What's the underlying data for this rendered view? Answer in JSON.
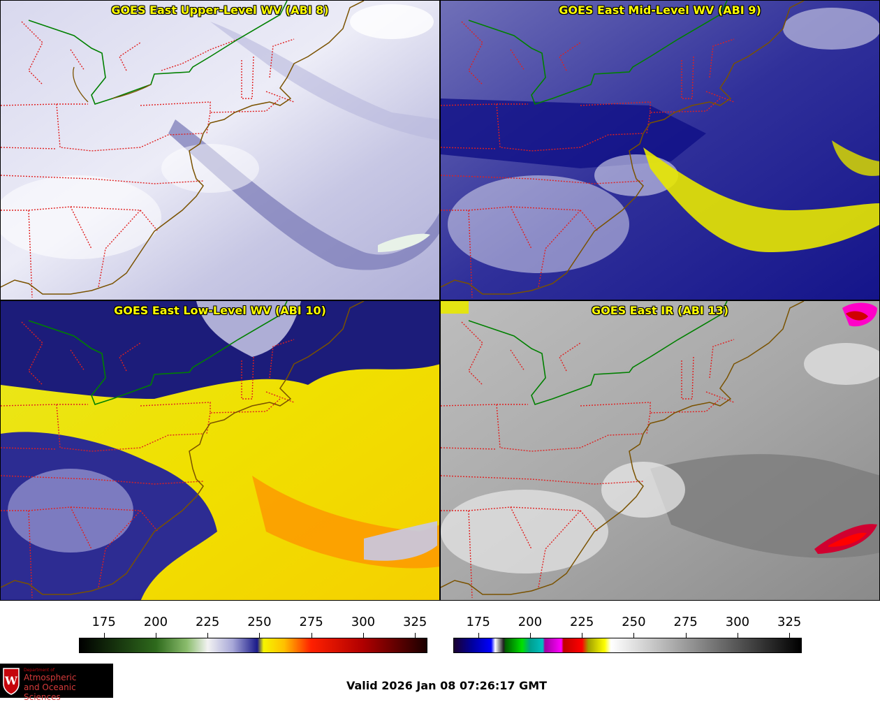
{
  "panels": [
    {
      "title": "GOES East Upper-Level WV (ABI 8)"
    },
    {
      "title": "GOES East Mid-Level WV (ABI 9)"
    },
    {
      "title": "GOES East Low-Level WV (ABI 10)"
    },
    {
      "title": "GOES East IR (ABI 13)"
    }
  ],
  "colorbars": {
    "wv": {
      "ticks": [
        "175",
        "200",
        "225",
        "250",
        "275",
        "300",
        "325"
      ],
      "tick_values": [
        175,
        200,
        225,
        250,
        275,
        300,
        325
      ],
      "range": [
        163,
        331
      ],
      "gradient": [
        {
          "v": 163,
          "c": "#000000"
        },
        {
          "v": 200,
          "c": "#2e6a1c"
        },
        {
          "v": 215,
          "c": "#8bbd6d"
        },
        {
          "v": 225,
          "c": "#f2f2f2"
        },
        {
          "v": 237,
          "c": "#a8a8d8"
        },
        {
          "v": 249,
          "c": "#1a1a8a"
        },
        {
          "v": 252,
          "c": "#f5f500"
        },
        {
          "v": 262,
          "c": "#ffc000"
        },
        {
          "v": 275,
          "c": "#ff2000"
        },
        {
          "v": 300,
          "c": "#b00000"
        },
        {
          "v": 331,
          "c": "#1a0000"
        }
      ]
    },
    "ir": {
      "ticks": [
        "175",
        "200",
        "225",
        "250",
        "275",
        "300",
        "325"
      ],
      "tick_values": [
        175,
        200,
        225,
        250,
        275,
        300,
        325
      ],
      "range": [
        163,
        331
      ],
      "gradient": [
        {
          "v": 163,
          "c": "#1a0030"
        },
        {
          "v": 172,
          "c": "#0000a0"
        },
        {
          "v": 181,
          "c": "#0000ff"
        },
        {
          "v": 183,
          "c": "#ffffff"
        },
        {
          "v": 187,
          "c": "#202020"
        },
        {
          "v": 188,
          "c": "#006000"
        },
        {
          "v": 196,
          "c": "#00e000"
        },
        {
          "v": 200,
          "c": "#00a090"
        },
        {
          "v": 206,
          "c": "#00c0c0"
        },
        {
          "v": 207,
          "c": "#a000a0"
        },
        {
          "v": 215,
          "c": "#ff00ff"
        },
        {
          "v": 216,
          "c": "#c00000"
        },
        {
          "v": 225,
          "c": "#ff0000"
        },
        {
          "v": 228,
          "c": "#a0a000"
        },
        {
          "v": 236,
          "c": "#ffff00"
        },
        {
          "v": 239,
          "c": "#ffffff"
        },
        {
          "v": 331,
          "c": "#000000"
        }
      ]
    }
  },
  "logo": {
    "line1": "Department of",
    "line2": "Atmospheric",
    "line3": "and Oceanic Sciences",
    "seal_letter": "W"
  },
  "valid_time": "Valid 2026 Jan 08 07:26:17 GMT",
  "colors": {
    "state_borders": "#e02020",
    "coastline": "#7a5200",
    "national_border": "#008000",
    "title": "#ffff00"
  }
}
